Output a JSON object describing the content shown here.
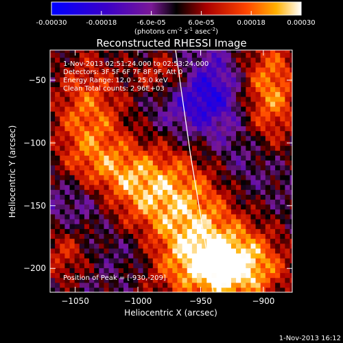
{
  "chart_data": {
    "type": "heatmap",
    "title": "Reconstructed RHESSI Image",
    "colorbar": {
      "ticks": [
        "-0.00030",
        "-0.00018",
        "-6.0e-05",
        "6.0e-05",
        "0.00018",
        "0.00030"
      ],
      "range": [
        -0.0003,
        0.0003
      ],
      "unit_prefix": "(photons cm",
      "unit_exp1": "-2",
      "unit_mid": " s",
      "unit_exp2": "-1",
      "unit_mid2": " asec",
      "unit_exp3": "-2",
      "unit_suffix": ")"
    },
    "xlabel": "Heliocentric X (arcsec)",
    "ylabel": "Heliocentric Y (arcsec)",
    "xlim": [
      -1070,
      -877
    ],
    "ylim": [
      -219,
      -26
    ],
    "xticks": [
      {
        "value": -1050,
        "label": "−1050"
      },
      {
        "value": -1000,
        "label": "−1000"
      },
      {
        "value": -950,
        "label": "−950"
      },
      {
        "value": -900,
        "label": "−900"
      }
    ],
    "yticks": [
      {
        "value": -50,
        "label": "−50"
      },
      {
        "value": -100,
        "label": "−100"
      },
      {
        "value": -150,
        "label": "−150"
      },
      {
        "value": -200,
        "label": "−200"
      }
    ],
    "annotations": [
      "1-Nov-2013 02:51:24.000 to 02:53:24.000",
      "Detectors: 3F 5F 6F 7F 8F 9F, Att 0",
      "Energy Range: 12.0 - 25.0 keV",
      "Clean    Total counts: 2.96E+03"
    ],
    "peak_text": "Position of Peak = [-930,-209]",
    "limb_arc": [
      [
        -970,
        -26
      ],
      [
        -958,
        -110
      ],
      [
        -948,
        -170
      ],
      [
        -940,
        -219
      ]
    ],
    "grid": false,
    "blobs": [
      {
        "x": -1040,
        "y": -80,
        "sx": 22,
        "sy": 40,
        "a": 0.00022
      },
      {
        "x": -1010,
        "y": -130,
        "sx": 28,
        "sy": 20,
        "a": 0.00018
      },
      {
        "x": -960,
        "y": -160,
        "sx": 40,
        "sy": 40,
        "a": 0.00028
      },
      {
        "x": -925,
        "y": -200,
        "sx": 30,
        "sy": 20,
        "a": 0.0003
      },
      {
        "x": -895,
        "y": -60,
        "sx": 18,
        "sy": 35,
        "a": 0.00026
      },
      {
        "x": -975,
        "y": -45,
        "sx": 18,
        "sy": 14,
        "a": 0.0002
      },
      {
        "x": -1060,
        "y": -190,
        "sx": 14,
        "sy": 18,
        "a": 0.00014
      },
      {
        "x": -950,
        "y": -60,
        "sx": 22,
        "sy": 22,
        "a": -0.00022
      },
      {
        "x": -1040,
        "y": -145,
        "sx": 22,
        "sy": 16,
        "a": -0.00015
      },
      {
        "x": -915,
        "y": -120,
        "sx": 22,
        "sy": 30,
        "a": -0.00012
      },
      {
        "x": -1005,
        "y": -185,
        "sx": 18,
        "sy": 16,
        "a": -0.0001
      }
    ]
  },
  "footer": {
    "date": "1-Nov-2013 16:12"
  }
}
